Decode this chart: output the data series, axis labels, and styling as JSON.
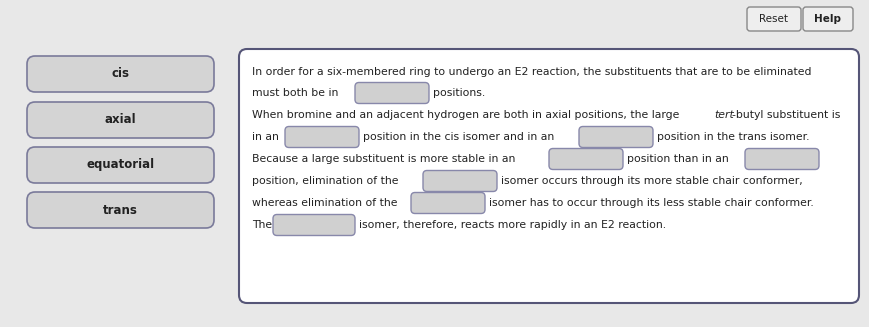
{
  "background_color": "#e8e8e8",
  "button_fill": "#d4d4d4",
  "button_edge": "#7a7a9a",
  "blank_fill": "#d0d0d0",
  "blank_edge": "#8888aa",
  "box_edge": "#555577",
  "box_fill": "#ffffff",
  "reset_label": "Reset",
  "help_label": "Help",
  "drag_labels": [
    "cis",
    "axial",
    "equatorial",
    "trans"
  ],
  "font_size": 7.8,
  "button_font_size": 8.5
}
